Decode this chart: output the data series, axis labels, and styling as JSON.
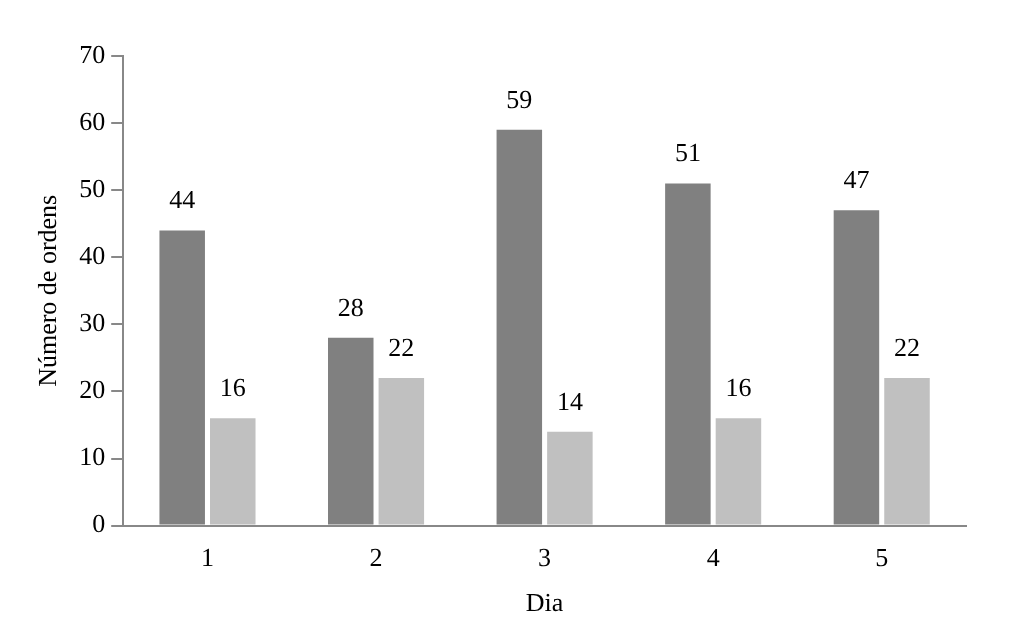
{
  "chart_data": {
    "type": "bar",
    "xlabel": "Dia",
    "ylabel": "Número de ordens",
    "categories": [
      "1",
      "2",
      "3",
      "4",
      "5"
    ],
    "series": [
      {
        "color": "#808080",
        "values": [
          44,
          28,
          59,
          51,
          47
        ]
      },
      {
        "color": "#c0c0c0",
        "values": [
          16,
          22,
          14,
          16,
          22
        ]
      }
    ],
    "ylim": [
      0,
      70
    ],
    "yticks": [
      0,
      10,
      20,
      30,
      40,
      50,
      60,
      70
    ],
    "grid": false,
    "legend": false,
    "data_labels": true
  }
}
